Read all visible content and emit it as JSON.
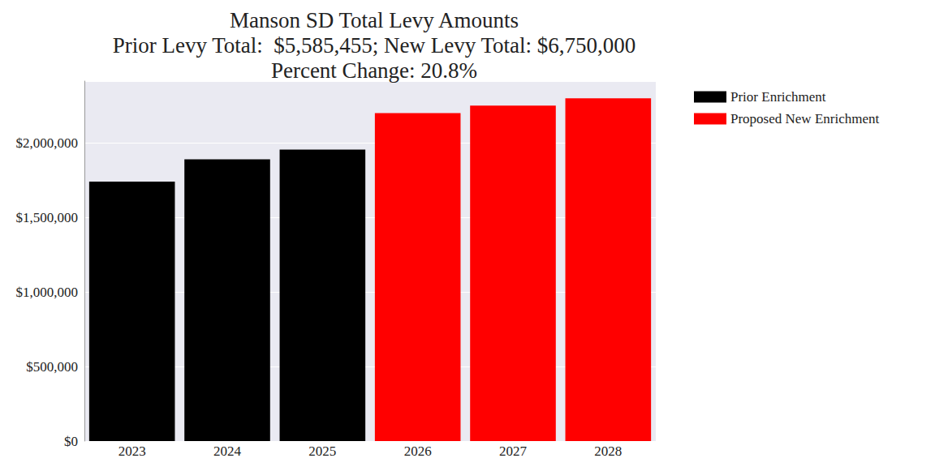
{
  "chart_data": {
    "type": "bar",
    "title": "Manson SD Total Levy Amounts\nPrior Levy Total:  $5,585,455; New Levy Total: $6,750,000\nPercent Change: 20.8%",
    "categories": [
      "2023",
      "2024",
      "2025",
      "2026",
      "2027",
      "2028"
    ],
    "series": [
      {
        "name": "Prior Enrichment",
        "color": "#000000",
        "values": [
          1740000,
          1890000,
          1955000,
          null,
          null,
          null
        ]
      },
      {
        "name": "Proposed New Enrichment",
        "color": "#ff0000",
        "values": [
          null,
          null,
          null,
          2200000,
          2250000,
          2300000
        ]
      }
    ],
    "ylim": [
      0,
      2415000
    ],
    "yticks": [
      {
        "value": 0,
        "label": "$0"
      },
      {
        "value": 500000,
        "label": "$500,000"
      },
      {
        "value": 1000000,
        "label": "$1,000,000"
      },
      {
        "value": 1500000,
        "label": "$1,500,000"
      },
      {
        "value": 2000000,
        "label": "$2,000,000"
      }
    ],
    "grid": true,
    "legend": "right"
  }
}
